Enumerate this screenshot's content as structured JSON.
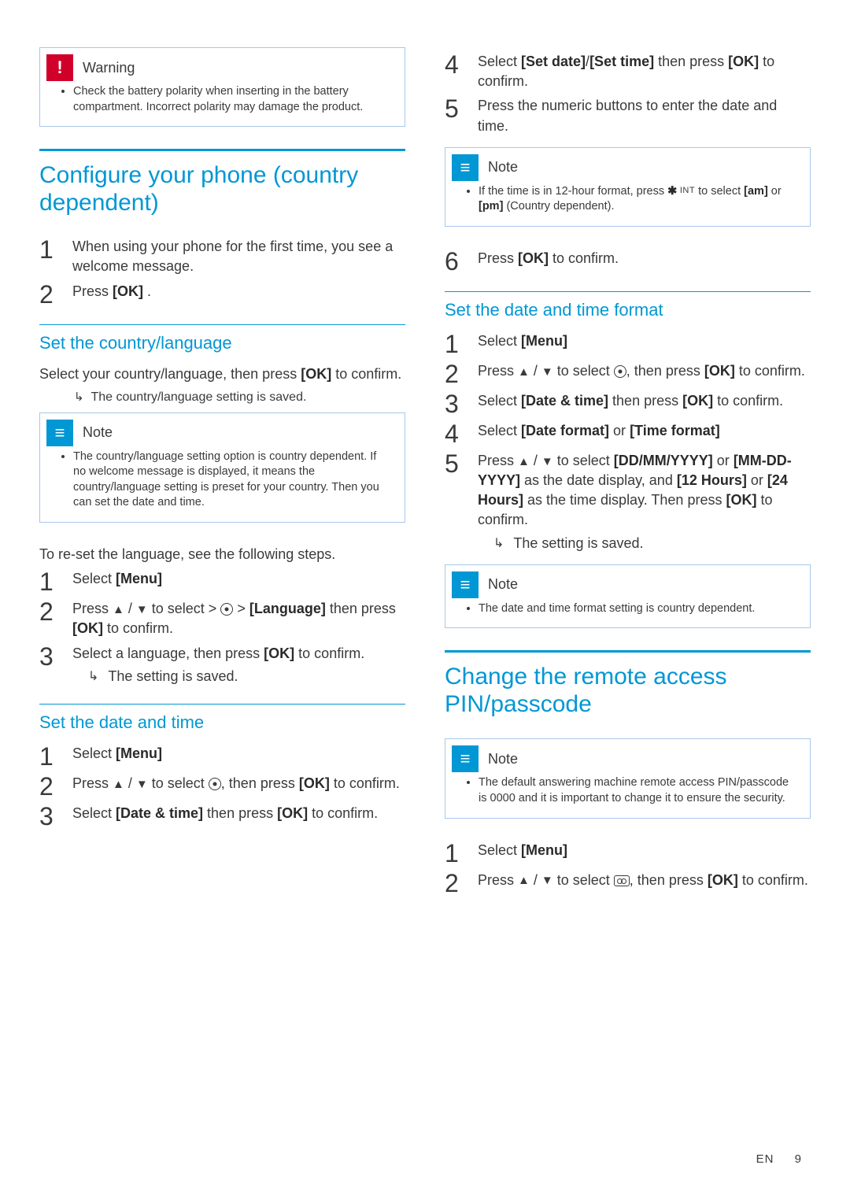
{
  "colors": {
    "accent": "#0097d4",
    "warn": "#d1002b",
    "text": "#3a3a3a",
    "callout_border": "#a8c8e8",
    "background": "#ffffff"
  },
  "typography": {
    "h1_fontsize": 30,
    "h2_fontsize": 22,
    "body_fontsize": 18,
    "callout_body_fontsize": 14.5,
    "step_number_fontsize": 32,
    "footer_fontsize": 15
  },
  "left": {
    "warning": {
      "title": "Warning",
      "body": "Check the battery polarity when inserting in the battery compartment. Incorrect polarity may damage the product."
    },
    "h1": "Configure your phone (country dependent)",
    "intro_steps": [
      "When using your phone for the first time, you see a welcome message.",
      "Press [OK] ."
    ],
    "sec_lang": {
      "title": "Set the country/language",
      "lead": "Select your country/language, then press [OK] to confirm.",
      "result": "The country/language setting is saved."
    },
    "note_lang": {
      "title": "Note",
      "body": "The country/language setting option is country dependent. If no welcome message is displayed, it means the country/language setting is preset for your country. Then you can set the date and time."
    },
    "reset_lang_lead": "To re-set the language, see the following steps.",
    "reset_lang_steps": [
      "Select [Menu]",
      "Press (up)/(down) to select > (settings) > [Language] then press [OK] to confirm.",
      "Select a language, then press [OK] to confirm."
    ],
    "reset_lang_result": "The setting is saved.",
    "sec_datetime": {
      "title": "Set the date and time",
      "steps": [
        "Select [Menu]",
        "Press (up)/(down) to select (settings), then press [OK] to confirm.",
        "Select [Date & time] then press [OK] to confirm."
      ]
    }
  },
  "right": {
    "cont_steps_start": 4,
    "cont_steps": [
      "Select [Set date]/[Set time] then press [OK] to confirm.",
      "Press the numeric buttons to enter the date and time."
    ],
    "note_12h": {
      "title": "Note",
      "body": "If the time is in 12-hour format, press * INT to select [am] or [pm] (Country dependent)."
    },
    "step6": "Press [OK] to confirm.",
    "sec_format": {
      "title": "Set the date and time format",
      "steps": [
        "Select [Menu]",
        "Press (up)/(down) to select (settings), then press [OK] to confirm.",
        "Select [Date & time] then press [OK] to confirm.",
        "Select [Date format] or [Time format]",
        "Press (up)/(down) to select [DD/MM/YYYY] or [MM-DD-YYYY] as the date display, and [12 Hours] or [24 Hours] as the time display. Then press [OK] to confirm."
      ],
      "result": "The setting is saved."
    },
    "note_format": {
      "title": "Note",
      "body": "The date and time format setting is country dependent."
    },
    "h1_pin": "Change the remote access PIN/passcode",
    "note_pin": {
      "title": "Note",
      "body": "The default answering machine remote access PIN/passcode is 0000 and it is important to change it to ensure the security."
    },
    "pin_steps": [
      "Select [Menu]",
      "Press (up)/(down) to select (answering-machine), then press [OK] to confirm."
    ]
  },
  "footer": {
    "lang": "EN",
    "page": "9"
  }
}
